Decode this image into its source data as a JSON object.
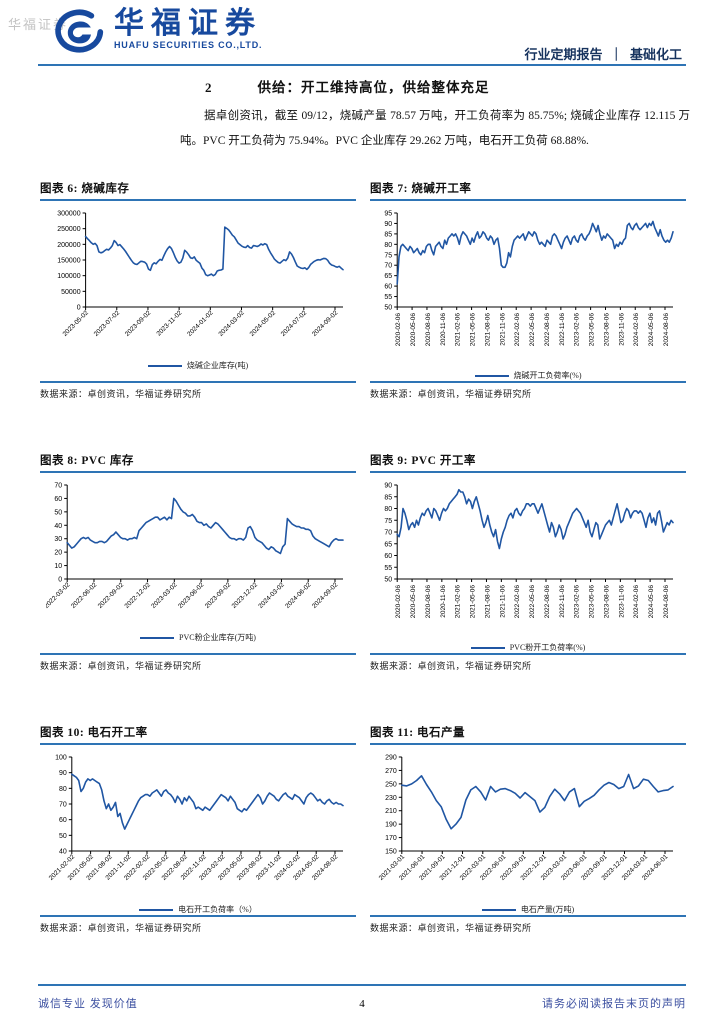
{
  "header": {
    "watermark": "华福证券",
    "brand_cn": "华福证券",
    "brand_en": "HUAFU SECURITIES CO.,LTD.",
    "report_type": "行业定期报告",
    "divider": "｜",
    "industry": "基础化工"
  },
  "section": {
    "number": "2",
    "title": "供给：开工维持高位，供给整体充足"
  },
  "paragraph": "据卓创资讯，截至 09/12，烧碱产量 78.57 万吨，开工负荷率为 85.75%; 烧碱企业库存 12.115 万吨。PVC 开工负荷为 75.94%。PVC 企业库存 29.262 万吨，电石开工负荷 68.88%.",
  "footer": {
    "motto": "诚信专业  发现价值",
    "page": "4",
    "disclaimer": "请务必阅读报告末页的声明"
  },
  "colors": {
    "accent": "#2e74b5",
    "line": "#2056a3",
    "brand": "#17499e",
    "footer_text": "#3b4fa0",
    "watermark": "#c3c3c3"
  },
  "chart_data": [
    {
      "type": "line",
      "title": "图表 6: 烧碱库存",
      "legend": "烧碱企业库存(吨)",
      "source": "数据来源：卓创资讯，华福证券研究所",
      "ylim": [
        0,
        300000
      ],
      "ytick_step": 50000,
      "x_label_rotate": 45,
      "x_labels": [
        "2023-05-02",
        "2023-07-02",
        "2023-09-02",
        "2023-11-02",
        "2024-01-02",
        "2024-03-02",
        "2024-05-02",
        "2024-07-02",
        "2024-09-02"
      ],
      "values": [
        225000,
        218000,
        212000,
        205000,
        200000,
        203000,
        196000,
        176000,
        173000,
        175000,
        180000,
        184000,
        182000,
        188000,
        196000,
        212000,
        206000,
        196000,
        199000,
        192000,
        185000,
        177000,
        168000,
        158000,
        149000,
        141000,
        137000,
        136000,
        141000,
        146000,
        145000,
        143000,
        137000,
        121000,
        117000,
        135000,
        141000,
        138000,
        146000,
        152000,
        149000,
        163000,
        176000,
        186000,
        193000,
        187000,
        174000,
        159000,
        147000,
        140000,
        143000,
        156000,
        181000,
        175000,
        167000,
        157000,
        155000,
        160000,
        149000,
        144000,
        139000,
        124000,
        117000,
        103000,
        100000,
        102000,
        105000,
        100000,
        104000,
        115000,
        117000,
        118000,
        121000,
        255000,
        251000,
        246000,
        238000,
        229000,
        224000,
        214000,
        204000,
        199000,
        194000,
        191000,
        190000,
        196000,
        190000,
        188000,
        196000,
        195000,
        193000,
        196000,
        201000,
        198000,
        202000,
        199000,
        184000,
        173000,
        163000,
        153000,
        147000,
        142000,
        140000,
        146000,
        151000,
        148000,
        156000,
        176000,
        169000,
        158000,
        144000,
        131000,
        127000,
        124000,
        123000,
        125000,
        120000,
        126000,
        136000,
        141000,
        146000,
        149000,
        151000,
        150000,
        153000,
        155000,
        154000,
        149000,
        139000,
        134000,
        132000,
        129000,
        127000,
        130000,
        124000,
        119000
      ]
    },
    {
      "type": "line",
      "title": "图表 7: 烧碱开工率",
      "legend": "烧碱开工负荷率(%)",
      "source": "数据来源：卓创资讯，华福证券研究所",
      "ylim": [
        50,
        95
      ],
      "ytick_step": 5,
      "x_label_rotate": 90,
      "x_labels": [
        "2020-02-06",
        "2020-05-06",
        "2020-08-06",
        "2020-11-06",
        "2021-02-06",
        "2021-05-06",
        "2021-08-06",
        "2021-11-06",
        "2022-02-06",
        "2022-05-06",
        "2022-08-06",
        "2022-11-06",
        "2023-02-06",
        "2023-05-06",
        "2023-08-06",
        "2023-11-06",
        "2024-02-06",
        "2024-05-06",
        "2024-08-06"
      ],
      "values": [
        61,
        74,
        79,
        80,
        79,
        78,
        77,
        79,
        78,
        76,
        77,
        78,
        76,
        75,
        77,
        76,
        79,
        80,
        80,
        77,
        75,
        79,
        80,
        81,
        79,
        78,
        82,
        80,
        83,
        84,
        85,
        84,
        85,
        83,
        80,
        84,
        86,
        85,
        84,
        82,
        80,
        83,
        81,
        84,
        86,
        83,
        84,
        86,
        85,
        83,
        82,
        84,
        83,
        80,
        82,
        83,
        78,
        70,
        69,
        69,
        71,
        76,
        74,
        79,
        82,
        83,
        84,
        83,
        84,
        85,
        82,
        84,
        86,
        85,
        84,
        86,
        85,
        82,
        80,
        81,
        80,
        79,
        82,
        81,
        80,
        84,
        85,
        84,
        82,
        80,
        78,
        81,
        83,
        84,
        82,
        80,
        83,
        84,
        82,
        81,
        84,
        85,
        83,
        82,
        84,
        85,
        87,
        90,
        88,
        86,
        89,
        85,
        82,
        84,
        83,
        85,
        84,
        83,
        82,
        78,
        80,
        79,
        81,
        80,
        82,
        83,
        89,
        90,
        88,
        87,
        89,
        90,
        88,
        87,
        88,
        89,
        90,
        88,
        90,
        89,
        91,
        88,
        86,
        84,
        87,
        84,
        82,
        81,
        82,
        81,
        83,
        86
      ]
    },
    {
      "type": "line",
      "title": "图表 8: PVC 库存",
      "legend": "PVC粉企业库存(万吨)",
      "source": "数据来源：卓创资讯，华福证券研究所",
      "ylim": [
        0,
        70
      ],
      "ytick_step": 10,
      "x_label_rotate": 45,
      "x_labels": [
        "2022-03-02",
        "2022-06-02",
        "2022-09-02",
        "2022-12-02",
        "2023-03-02",
        "2023-06-02",
        "2023-09-02",
        "2023-12-02",
        "2024-03-02",
        "2024-06-02",
        "2024-09-02"
      ],
      "values": [
        27,
        25,
        23,
        24,
        26,
        28,
        30,
        31,
        30,
        31,
        29,
        28,
        27,
        27,
        28,
        28,
        27,
        28,
        30,
        32,
        33,
        35,
        33,
        31,
        30,
        30,
        29,
        30,
        30,
        31,
        30,
        36,
        38,
        40,
        42,
        43,
        44,
        45,
        46,
        46,
        44,
        45,
        46,
        44,
        46,
        45,
        60,
        58,
        55,
        52,
        50,
        49,
        47,
        47,
        48,
        46,
        43,
        42,
        42,
        40,
        41,
        39,
        38,
        40,
        42,
        41,
        39,
        37,
        35,
        33,
        31,
        30,
        30,
        29,
        30,
        30,
        29,
        31,
        38,
        39,
        36,
        31,
        29,
        28,
        27,
        25,
        23,
        22,
        24,
        23,
        21,
        20,
        19,
        24,
        26,
        45,
        43,
        41,
        40,
        39,
        39,
        38,
        38,
        37,
        37,
        36,
        32,
        30,
        29,
        28,
        27,
        26,
        25,
        24,
        27,
        29,
        30,
        29,
        29,
        29
      ]
    },
    {
      "type": "line",
      "title": "图表 9: PVC 开工率",
      "legend": "PVC粉开工负荷率(%)",
      "source": "数据来源：卓创资讯，华福证券研究所",
      "ylim": [
        50,
        90
      ],
      "ytick_step": 5,
      "x_label_rotate": 90,
      "x_labels": [
        "2020-02-06",
        "2020-05-06",
        "2020-08-06",
        "2020-11-06",
        "2021-02-06",
        "2021-05-06",
        "2021-08-06",
        "2021-11-06",
        "2022-02-06",
        "2022-05-06",
        "2022-08-06",
        "2022-11-06",
        "2023-02-06",
        "2023-05-06",
        "2023-08-06",
        "2023-11-06",
        "2024-02-06",
        "2024-05-06",
        "2024-08-06"
      ],
      "values": [
        69,
        68,
        72,
        80,
        78,
        75,
        71,
        73,
        74,
        72,
        75,
        73,
        76,
        78,
        77,
        79,
        80,
        78,
        76,
        80,
        79,
        77,
        75,
        78,
        80,
        79,
        80,
        82,
        83,
        84,
        85,
        86,
        88,
        87,
        87,
        85,
        82,
        84,
        83,
        80,
        83,
        85,
        82,
        79,
        75,
        72,
        74,
        77,
        73,
        70,
        68,
        71,
        66,
        63,
        67,
        70,
        72,
        75,
        77,
        78,
        76,
        79,
        80,
        78,
        77,
        79,
        80,
        82,
        82,
        81,
        82,
        82,
        80,
        78,
        80,
        82,
        79,
        76,
        73,
        70,
        74,
        72,
        68,
        70,
        73,
        71,
        67,
        69,
        72,
        74,
        76,
        78,
        79,
        80,
        79,
        78,
        76,
        74,
        72,
        75,
        70,
        68,
        71,
        74,
        73,
        67,
        69,
        71,
        73,
        74,
        75,
        73,
        76,
        79,
        82,
        78,
        74,
        75,
        78,
        80,
        79,
        76,
        78,
        79,
        79,
        78,
        79,
        78,
        75,
        72,
        76,
        78,
        74,
        76,
        73,
        78,
        79,
        75,
        70,
        72,
        74,
        73,
        75,
        74
      ]
    },
    {
      "type": "line",
      "title": "图表 10: 电石开工率",
      "legend": "电石开工负荷率（%）",
      "source": "数据来源：卓创资讯，华福证券研究所",
      "ylim": [
        40,
        100
      ],
      "ytick_step": 10,
      "x_label_rotate": 45,
      "x_labels": [
        "2021-02-02",
        "2021-05-02",
        "2021-08-02",
        "2021-11-02",
        "2022-02-02",
        "2022-05-02",
        "2022-08-02",
        "2022-11-02",
        "2023-02-02",
        "2023-05-02",
        "2023-08-02",
        "2023-11-02",
        "2024-02-02",
        "2024-05-02",
        "2024-08-02"
      ],
      "values": [
        89,
        88,
        87,
        85,
        78,
        80,
        84,
        86,
        85,
        86,
        85,
        84,
        83,
        79,
        72,
        67,
        70,
        66,
        68,
        71,
        62,
        64,
        58,
        54,
        57,
        60,
        63,
        66,
        69,
        72,
        74,
        75,
        76,
        76,
        75,
        77,
        78,
        79,
        77,
        75,
        78,
        79,
        77,
        76,
        74,
        71,
        75,
        73,
        70,
        74,
        72,
        75,
        73,
        71,
        67,
        68,
        67,
        66,
        68,
        67,
        66,
        68,
        70,
        72,
        74,
        76,
        75,
        74,
        72,
        75,
        73,
        71,
        67,
        66,
        65,
        67,
        66,
        68,
        70,
        72,
        74,
        76,
        74,
        70,
        72,
        75,
        77,
        76,
        75,
        73,
        72,
        74,
        76,
        77,
        75,
        74,
        73,
        76,
        75,
        74,
        72,
        70,
        74,
        76,
        77,
        76,
        74,
        72,
        73,
        71,
        70,
        72,
        73,
        71,
        70,
        71,
        70,
        70,
        69
      ]
    },
    {
      "type": "line",
      "title": "图表 11: 电石产量",
      "legend": "电石产量(万吨)",
      "source": "数据来源：卓创资讯，华福证券研究所",
      "ylim": [
        150,
        290
      ],
      "ytick_step": 20,
      "x_label_rotate": 45,
      "x_labels": [
        "2021-03-01",
        "2021-06-01",
        "2021-09-01",
        "2021-12-01",
        "2022-03-01",
        "2022-06-01",
        "2022-09-01",
        "2022-12-01",
        "2023-03-01",
        "2023-06-01",
        "2023-09-01",
        "2023-12-01",
        "2024-03-01",
        "2024-06-01"
      ],
      "values": [
        248,
        247,
        250,
        255,
        262,
        249,
        238,
        225,
        216,
        197,
        183,
        190,
        200,
        226,
        241,
        246,
        238,
        226,
        246,
        238,
        242,
        243,
        240,
        236,
        229,
        237,
        231,
        225,
        208,
        215,
        231,
        242,
        235,
        225,
        238,
        243,
        216,
        224,
        228,
        233,
        241,
        248,
        252,
        249,
        243,
        246,
        264,
        243,
        247,
        257,
        255,
        246,
        238,
        240,
        241,
        246
      ]
    }
  ]
}
